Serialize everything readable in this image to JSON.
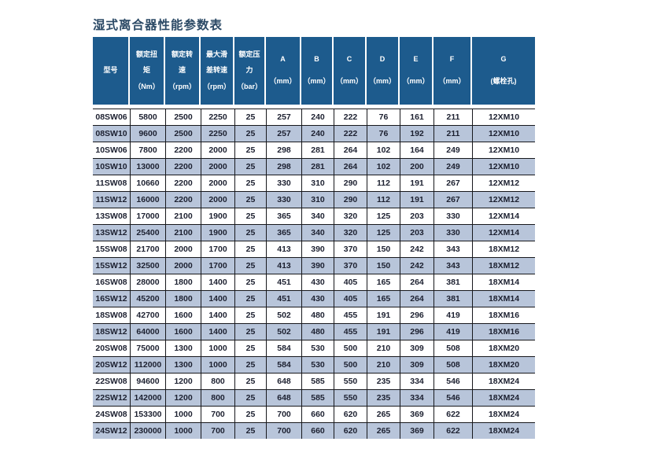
{
  "title": "湿式离合器性能参数表",
  "colors": {
    "header_bg": "#1d5b8d",
    "header_text": "#ffffff",
    "stripe_bg": "#b8c5da",
    "border": "#17181c",
    "cell_text": "#1c2030",
    "title_color": "#2c4a66"
  },
  "table": {
    "columns": [
      {
        "id": "model",
        "lines": [
          "型号"
        ]
      },
      {
        "id": "rated-torque",
        "lines": [
          "额定扭",
          "矩",
          "（Nm）"
        ]
      },
      {
        "id": "rated-speed",
        "lines": [
          "额定转",
          "速",
          "（rpm）"
        ]
      },
      {
        "id": "max-slip-speed",
        "lines": [
          "最大滑",
          "差转速",
          "（rpm）"
        ]
      },
      {
        "id": "rated-pressure",
        "lines": [
          "额定压",
          "力",
          "（bar）"
        ]
      },
      {
        "id": "dim-a",
        "lines": [
          "A",
          "（mm）"
        ]
      },
      {
        "id": "dim-b",
        "lines": [
          "B",
          "（mm）"
        ]
      },
      {
        "id": "dim-c",
        "lines": [
          "C",
          "（mm）"
        ]
      },
      {
        "id": "dim-d",
        "lines": [
          "D",
          "（mm）"
        ]
      },
      {
        "id": "dim-e",
        "lines": [
          "E",
          "（mm）"
        ]
      },
      {
        "id": "dim-f",
        "lines": [
          "F",
          "（mm）"
        ]
      },
      {
        "id": "dim-g",
        "lines": [
          "G",
          "(螺栓孔)"
        ]
      }
    ],
    "rows": [
      [
        "08SW06",
        "5800",
        "2500",
        "2250",
        "25",
        "257",
        "240",
        "222",
        "76",
        "161",
        "211",
        "12XM10"
      ],
      [
        "08SW10",
        "9600",
        "2500",
        "2250",
        "25",
        "257",
        "240",
        "222",
        "76",
        "192",
        "211",
        "12XM10"
      ],
      [
        "10SW06",
        "7800",
        "2200",
        "2000",
        "25",
        "298",
        "281",
        "264",
        "102",
        "164",
        "249",
        "12XM10"
      ],
      [
        "10SW10",
        "13000",
        "2200",
        "2000",
        "25",
        "298",
        "281",
        "264",
        "102",
        "200",
        "249",
        "12XM10"
      ],
      [
        "11SW08",
        "10660",
        "2200",
        "2000",
        "25",
        "330",
        "310",
        "290",
        "112",
        "191",
        "267",
        "12XM12"
      ],
      [
        "11SW12",
        "16000",
        "2200",
        "2000",
        "25",
        "330",
        "310",
        "290",
        "112",
        "191",
        "267",
        "12XM12"
      ],
      [
        "13SW08",
        "17000",
        "2100",
        "1900",
        "25",
        "365",
        "340",
        "320",
        "125",
        "203",
        "330",
        "12XM14"
      ],
      [
        "13SW12",
        "25400",
        "2100",
        "1900",
        "25",
        "365",
        "340",
        "320",
        "125",
        "203",
        "330",
        "12XM14"
      ],
      [
        "15SW08",
        "21700",
        "2000",
        "1700",
        "25",
        "413",
        "390",
        "370",
        "150",
        "242",
        "343",
        "18XM12"
      ],
      [
        "15SW12",
        "32500",
        "2000",
        "1700",
        "25",
        "413",
        "390",
        "370",
        "150",
        "242",
        "343",
        "18XM12"
      ],
      [
        "16SW08",
        "28000",
        "1800",
        "1400",
        "25",
        "451",
        "430",
        "405",
        "165",
        "264",
        "381",
        "18XM14"
      ],
      [
        "16SW12",
        "45200",
        "1800",
        "1400",
        "25",
        "451",
        "430",
        "405",
        "165",
        "264",
        "381",
        "18XM14"
      ],
      [
        "18SW08",
        "42700",
        "1600",
        "1400",
        "25",
        "502",
        "480",
        "455",
        "191",
        "296",
        "419",
        "18XM16"
      ],
      [
        "18SW12",
        "64000",
        "1600",
        "1400",
        "25",
        "502",
        "480",
        "455",
        "191",
        "296",
        "419",
        "18XM16"
      ],
      [
        "20SW08",
        "75000",
        "1300",
        "1000",
        "25",
        "584",
        "530",
        "500",
        "210",
        "309",
        "508",
        "18XM20"
      ],
      [
        "20SW12",
        "112000",
        "1300",
        "1000",
        "25",
        "584",
        "530",
        "500",
        "210",
        "309",
        "508",
        "18XM20"
      ],
      [
        "22SW08",
        "94600",
        "1200",
        "800",
        "25",
        "648",
        "585",
        "550",
        "235",
        "334",
        "546",
        "18XM24"
      ],
      [
        "22SW12",
        "142000",
        "1200",
        "800",
        "25",
        "648",
        "585",
        "550",
        "235",
        "334",
        "546",
        "18XM24"
      ],
      [
        "24SW08",
        "153300",
        "1000",
        "700",
        "25",
        "700",
        "660",
        "620",
        "265",
        "369",
        "622",
        "18XM24"
      ],
      [
        "24SW12",
        "230000",
        "1000",
        "700",
        "25",
        "700",
        "660",
        "620",
        "265",
        "369",
        "622",
        "18XM24"
      ]
    ]
  }
}
